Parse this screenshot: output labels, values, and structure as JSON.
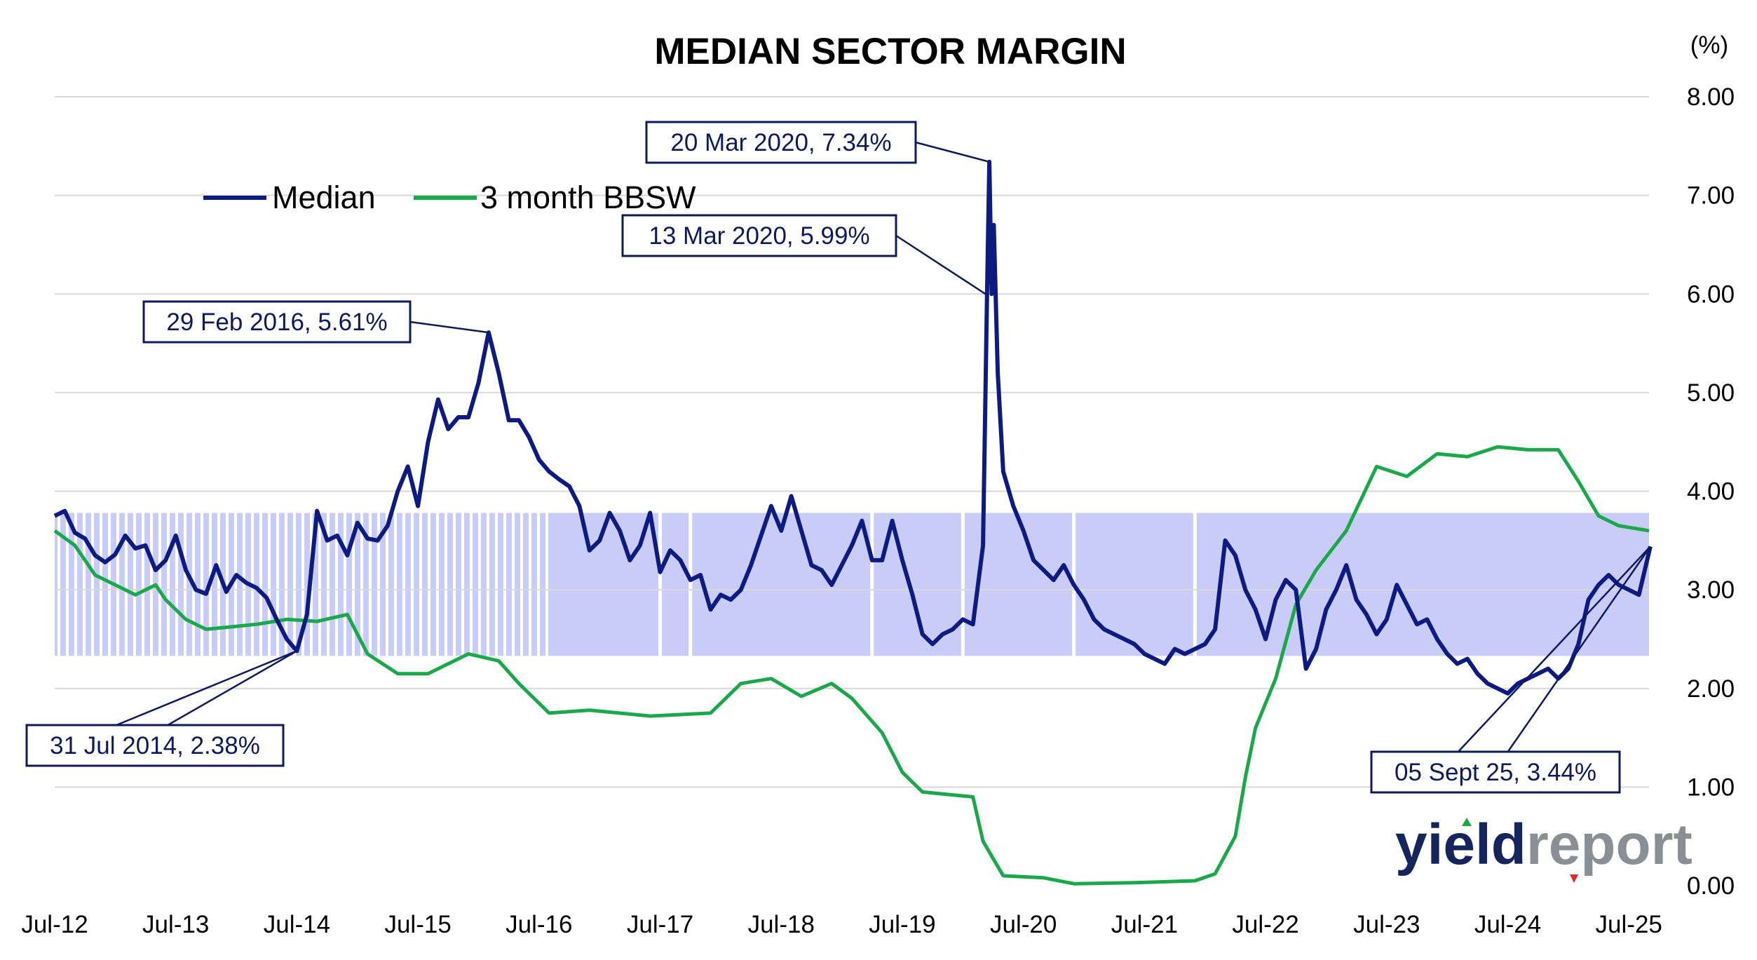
{
  "chart_data": {
    "type": "line",
    "title": "MEDIAN SECTOR MARGIN",
    "y_unit": "(%)",
    "ylim": [
      0,
      8
    ],
    "y_ticks": [
      "0.00",
      "1.00",
      "2.00",
      "3.00",
      "4.00",
      "5.00",
      "6.00",
      "7.00",
      "8.00"
    ],
    "x_ticks": [
      "Jul-12",
      "Jul-13",
      "Jul-14",
      "Jul-15",
      "Jul-16",
      "Jul-17",
      "Jul-18",
      "Jul-19",
      "Jul-20",
      "Jul-21",
      "Jul-22",
      "Jul-23",
      "Jul-24",
      "Jul-25"
    ],
    "x_range": [
      "2012-07",
      "2025-09"
    ],
    "grid": "horizontal",
    "legend_position": "top-left",
    "band": {
      "low": 2.33,
      "high": 3.78,
      "color": "#c8ccf7"
    },
    "colors": {
      "median": "#0d1a80",
      "bbsw": "#1aa84a"
    },
    "series": [
      {
        "name": "Median",
        "points": [
          [
            "2012-07",
            3.75
          ],
          [
            "2012-08",
            3.8
          ],
          [
            "2012-09",
            3.58
          ],
          [
            "2012-10",
            3.52
          ],
          [
            "2012-11",
            3.35
          ],
          [
            "2012-12",
            3.28
          ],
          [
            "2013-01",
            3.36
          ],
          [
            "2013-02",
            3.55
          ],
          [
            "2013-03",
            3.42
          ],
          [
            "2013-04",
            3.45
          ],
          [
            "2013-05",
            3.2
          ],
          [
            "2013-06",
            3.3
          ],
          [
            "2013-07",
            3.55
          ],
          [
            "2013-08",
            3.2
          ],
          [
            "2013-09",
            3.0
          ],
          [
            "2013-10",
            2.96
          ],
          [
            "2013-11",
            3.25
          ],
          [
            "2013-12",
            2.98
          ],
          [
            "2014-01",
            3.15
          ],
          [
            "2014-02",
            3.07
          ],
          [
            "2014-03",
            3.02
          ],
          [
            "2014-04",
            2.92
          ],
          [
            "2014-05",
            2.7
          ],
          [
            "2014-06",
            2.5
          ],
          [
            "2014-07",
            2.38
          ],
          [
            "2014-08",
            2.75
          ],
          [
            "2014-09",
            3.8
          ],
          [
            "2014-10",
            3.5
          ],
          [
            "2014-11",
            3.55
          ],
          [
            "2014-12",
            3.35
          ],
          [
            "2015-01",
            3.68
          ],
          [
            "2015-02",
            3.52
          ],
          [
            "2015-03",
            3.5
          ],
          [
            "2015-04",
            3.65
          ],
          [
            "2015-05",
            4.0
          ],
          [
            "2015-06",
            4.25
          ],
          [
            "2015-07",
            3.85
          ],
          [
            "2015-08",
            4.5
          ],
          [
            "2015-09",
            4.93
          ],
          [
            "2015-10",
            4.63
          ],
          [
            "2015-11",
            4.75
          ],
          [
            "2015-12",
            4.75
          ],
          [
            "2016-01",
            5.1
          ],
          [
            "2016-02",
            5.61
          ],
          [
            "2016-03",
            5.2
          ],
          [
            "2016-04",
            4.72
          ],
          [
            "2016-05",
            4.72
          ],
          [
            "2016-06",
            4.55
          ],
          [
            "2016-07",
            4.32
          ],
          [
            "2016-08",
            4.2
          ],
          [
            "2016-09",
            4.12
          ],
          [
            "2016-10",
            4.05
          ],
          [
            "2016-11",
            3.85
          ],
          [
            "2016-12",
            3.4
          ],
          [
            "2017-01",
            3.5
          ],
          [
            "2017-02",
            3.78
          ],
          [
            "2017-03",
            3.6
          ],
          [
            "2017-04",
            3.3
          ],
          [
            "2017-05",
            3.45
          ],
          [
            "2017-06",
            3.78
          ],
          [
            "2017-07",
            3.18
          ],
          [
            "2017-08",
            3.4
          ],
          [
            "2017-09",
            3.3
          ],
          [
            "2017-10",
            3.1
          ],
          [
            "2017-11",
            3.15
          ],
          [
            "2017-12",
            2.8
          ],
          [
            "2018-01",
            2.95
          ],
          [
            "2018-02",
            2.9
          ],
          [
            "2018-03",
            3.0
          ],
          [
            "2018-04",
            3.25
          ],
          [
            "2018-05",
            3.55
          ],
          [
            "2018-06",
            3.85
          ],
          [
            "2018-07",
            3.6
          ],
          [
            "2018-08",
            3.95
          ],
          [
            "2018-09",
            3.6
          ],
          [
            "2018-10",
            3.25
          ],
          [
            "2018-11",
            3.2
          ],
          [
            "2018-12",
            3.05
          ],
          [
            "2019-01",
            3.25
          ],
          [
            "2019-02",
            3.45
          ],
          [
            "2019-03",
            3.7
          ],
          [
            "2019-04",
            3.3
          ],
          [
            "2019-05",
            3.3
          ],
          [
            "2019-06",
            3.7
          ],
          [
            "2019-07",
            3.3
          ],
          [
            "2019-08",
            2.95
          ],
          [
            "2019-09",
            2.55
          ],
          [
            "2019-10",
            2.45
          ],
          [
            "2019-11",
            2.55
          ],
          [
            "2019-12",
            2.6
          ],
          [
            "2020-01",
            2.7
          ],
          [
            "2020-02",
            2.65
          ],
          [
            "2020-03-01",
            3.45
          ],
          [
            "2020-03-13",
            5.99
          ],
          [
            "2020-03-20",
            7.34
          ],
          [
            "2020-03-27",
            6.0
          ],
          [
            "2020-04-03",
            6.7
          ],
          [
            "2020-04-15",
            5.2
          ],
          [
            "2020-05",
            4.2
          ],
          [
            "2020-06",
            3.85
          ],
          [
            "2020-07",
            3.6
          ],
          [
            "2020-08",
            3.3
          ],
          [
            "2020-09",
            3.2
          ],
          [
            "2020-10",
            3.1
          ],
          [
            "2020-11",
            3.25
          ],
          [
            "2020-12",
            3.05
          ],
          [
            "2021-01",
            2.9
          ],
          [
            "2021-02",
            2.7
          ],
          [
            "2021-03",
            2.6
          ],
          [
            "2021-04",
            2.55
          ],
          [
            "2021-05",
            2.5
          ],
          [
            "2021-06",
            2.45
          ],
          [
            "2021-07",
            2.35
          ],
          [
            "2021-08",
            2.3
          ],
          [
            "2021-09",
            2.25
          ],
          [
            "2021-10",
            2.4
          ],
          [
            "2021-11",
            2.35
          ],
          [
            "2021-12",
            2.4
          ],
          [
            "2022-01",
            2.45
          ],
          [
            "2022-02",
            2.6
          ],
          [
            "2022-03",
            3.5
          ],
          [
            "2022-04",
            3.35
          ],
          [
            "2022-05",
            3.0
          ],
          [
            "2022-06",
            2.8
          ],
          [
            "2022-07",
            2.5
          ],
          [
            "2022-08",
            2.9
          ],
          [
            "2022-09",
            3.1
          ],
          [
            "2022-10",
            3.0
          ],
          [
            "2022-11",
            2.2
          ],
          [
            "2022-12",
            2.4
          ],
          [
            "2023-01",
            2.8
          ],
          [
            "2023-02",
            3.0
          ],
          [
            "2023-03",
            3.25
          ],
          [
            "2023-04",
            2.9
          ],
          [
            "2023-05",
            2.75
          ],
          [
            "2023-06",
            2.55
          ],
          [
            "2023-07",
            2.7
          ],
          [
            "2023-08",
            3.05
          ],
          [
            "2023-09",
            2.85
          ],
          [
            "2023-10",
            2.65
          ],
          [
            "2023-11",
            2.7
          ],
          [
            "2023-12",
            2.5
          ],
          [
            "2024-01",
            2.35
          ],
          [
            "2024-02",
            2.25
          ],
          [
            "2024-03",
            2.3
          ],
          [
            "2024-04",
            2.15
          ],
          [
            "2024-05",
            2.05
          ],
          [
            "2024-06",
            2.0
          ],
          [
            "2024-07",
            1.95
          ],
          [
            "2024-08",
            2.05
          ],
          [
            "2024-09",
            2.1
          ],
          [
            "2024-10",
            2.15
          ],
          [
            "2024-11",
            2.2
          ],
          [
            "2024-12",
            2.1
          ],
          [
            "2025-01",
            2.2
          ],
          [
            "2025-02",
            2.45
          ],
          [
            "2025-03",
            2.9
          ],
          [
            "2025-04",
            3.05
          ],
          [
            "2025-05",
            3.15
          ],
          [
            "2025-06",
            3.05
          ],
          [
            "2025-07",
            3.0
          ],
          [
            "2025-08",
            2.95
          ],
          [
            "2025-09-05",
            3.44
          ]
        ]
      },
      {
        "name": "3 month BBSW",
        "points": [
          [
            "2012-07",
            3.6
          ],
          [
            "2012-09",
            3.45
          ],
          [
            "2012-11",
            3.15
          ],
          [
            "2013-01",
            3.05
          ],
          [
            "2013-03",
            2.95
          ],
          [
            "2013-05",
            3.05
          ],
          [
            "2013-06",
            2.9
          ],
          [
            "2013-08",
            2.7
          ],
          [
            "2013-10",
            2.6
          ],
          [
            "2013-12",
            2.62
          ],
          [
            "2014-03",
            2.65
          ],
          [
            "2014-06",
            2.7
          ],
          [
            "2014-09",
            2.68
          ],
          [
            "2014-12",
            2.75
          ],
          [
            "2015-02",
            2.35
          ],
          [
            "2015-05",
            2.15
          ],
          [
            "2015-08",
            2.15
          ],
          [
            "2015-10",
            2.25
          ],
          [
            "2015-12",
            2.35
          ],
          [
            "2016-03",
            2.28
          ],
          [
            "2016-05",
            2.05
          ],
          [
            "2016-08",
            1.75
          ],
          [
            "2016-12",
            1.78
          ],
          [
            "2017-06",
            1.72
          ],
          [
            "2017-12",
            1.75
          ],
          [
            "2018-03",
            2.05
          ],
          [
            "2018-06",
            2.1
          ],
          [
            "2018-09",
            1.92
          ],
          [
            "2018-12",
            2.05
          ],
          [
            "2019-02",
            1.9
          ],
          [
            "2019-05",
            1.55
          ],
          [
            "2019-07",
            1.15
          ],
          [
            "2019-09",
            0.95
          ],
          [
            "2019-12",
            0.92
          ],
          [
            "2020-02",
            0.9
          ],
          [
            "2020-03",
            0.45
          ],
          [
            "2020-05",
            0.1
          ],
          [
            "2020-09",
            0.08
          ],
          [
            "2020-12",
            0.02
          ],
          [
            "2021-06",
            0.03
          ],
          [
            "2021-12",
            0.05
          ],
          [
            "2022-02",
            0.12
          ],
          [
            "2022-04",
            0.5
          ],
          [
            "2022-05",
            1.1
          ],
          [
            "2022-06",
            1.6
          ],
          [
            "2022-08",
            2.1
          ],
          [
            "2022-10",
            2.85
          ],
          [
            "2022-12",
            3.2
          ],
          [
            "2023-03",
            3.6
          ],
          [
            "2023-06",
            4.25
          ],
          [
            "2023-09",
            4.15
          ],
          [
            "2023-12",
            4.38
          ],
          [
            "2024-03",
            4.35
          ],
          [
            "2024-06",
            4.45
          ],
          [
            "2024-09",
            4.42
          ],
          [
            "2024-12",
            4.42
          ],
          [
            "2025-02",
            4.1
          ],
          [
            "2025-04",
            3.75
          ],
          [
            "2025-06",
            3.65
          ],
          [
            "2025-09",
            3.6
          ]
        ]
      }
    ],
    "annotations": [
      {
        "text": "29 Feb 2016, 5.61%",
        "date": "2016-02",
        "value": 5.61
      },
      {
        "text": "20 Mar 2020, 7.34%",
        "date": "2020-03-20",
        "value": 7.34
      },
      {
        "text": "13 Mar 2020, 5.99%",
        "date": "2020-03-13",
        "value": 5.99
      },
      {
        "text": "31 Jul 2014, 2.38%",
        "date": "2014-07",
        "value": 2.38
      },
      {
        "text": "05 Sept 25, 3.44%",
        "date": "2025-09-05",
        "value": 3.44
      }
    ]
  },
  "logo": {
    "part1": "yield",
    "part2": "report"
  }
}
